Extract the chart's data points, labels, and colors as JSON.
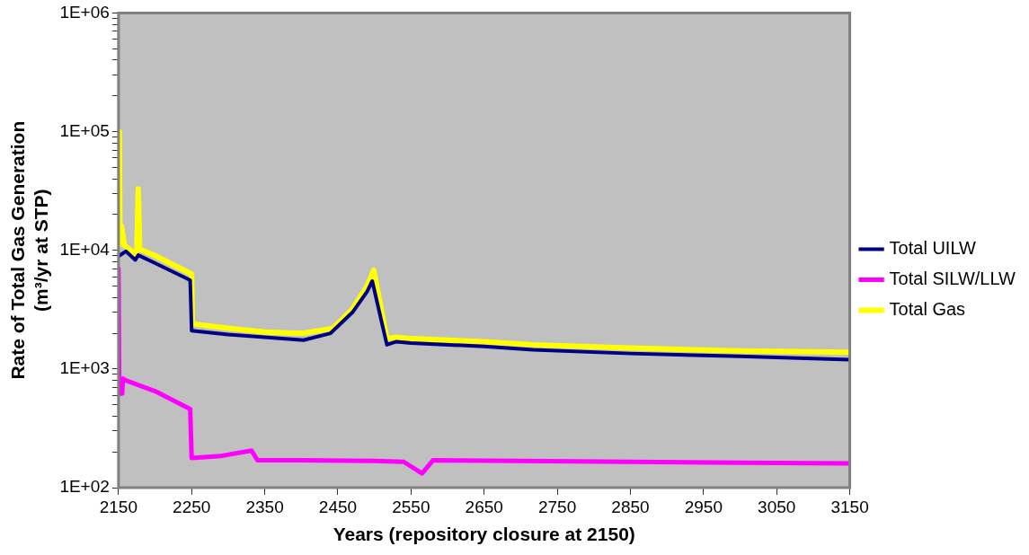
{
  "chart_data": {
    "type": "line",
    "xlabel": "Years (repository closure at 2150)",
    "ylabel": "Rate of Total Gas Generation (m³/yr at STP)",
    "log": "y",
    "grid": false,
    "legend": "right",
    "marker": "none",
    "line_style": "solid",
    "xlim": [
      2150,
      3150
    ],
    "xticks": [
      2150,
      2250,
      2350,
      2450,
      2550,
      2650,
      2750,
      2850,
      2950,
      3050,
      3150
    ],
    "ylim": [
      100,
      1000000
    ],
    "yticks": [
      {
        "value": 100,
        "label": "1E+02"
      },
      {
        "value": 200,
        "label": null
      },
      {
        "value": 300,
        "label": null
      },
      {
        "value": 400,
        "label": null
      },
      {
        "value": 500,
        "label": null
      },
      {
        "value": 600,
        "label": null
      },
      {
        "value": 700,
        "label": null
      },
      {
        "value": 800,
        "label": null
      },
      {
        "value": 900,
        "label": null
      },
      {
        "value": 1000,
        "label": "1E+03"
      },
      {
        "value": 2000,
        "label": null
      },
      {
        "value": 3000,
        "label": null
      },
      {
        "value": 4000,
        "label": null
      },
      {
        "value": 5000,
        "label": null
      },
      {
        "value": 6000,
        "label": null
      },
      {
        "value": 7000,
        "label": null
      },
      {
        "value": 8000,
        "label": null
      },
      {
        "value": 9000,
        "label": null
      },
      {
        "value": 10000,
        "label": "1E+04"
      },
      {
        "value": 20000,
        "label": null
      },
      {
        "value": 30000,
        "label": null
      },
      {
        "value": 40000,
        "label": null
      },
      {
        "value": 50000,
        "label": null
      },
      {
        "value": 60000,
        "label": null
      },
      {
        "value": 70000,
        "label": null
      },
      {
        "value": 80000,
        "label": null
      },
      {
        "value": 90000,
        "label": null
      },
      {
        "value": 100000,
        "label": "1E+05"
      },
      {
        "value": 200000,
        "label": null
      },
      {
        "value": 300000,
        "label": null
      },
      {
        "value": 400000,
        "label": null
      },
      {
        "value": 500000,
        "label": null
      },
      {
        "value": 600000,
        "label": null
      },
      {
        "value": 700000,
        "label": null
      },
      {
        "value": 800000,
        "label": null
      },
      {
        "value": 900000,
        "label": null
      },
      {
        "value": 1000000,
        "label": "1E+06"
      }
    ],
    "series": [
      {
        "name": "Total UILW",
        "color": "#000080",
        "x": [
          2151,
          2160,
          2173,
          2177,
          2200,
          2248,
          2250,
          2300,
          2350,
          2403,
          2440,
          2470,
          2490,
          2497,
          2517,
          2530,
          2550,
          2650,
          2717,
          2850,
          3000,
          3150
        ],
        "values": [
          9000,
          9800,
          8300,
          9100,
          7800,
          5600,
          2100,
          1950,
          1850,
          1750,
          2000,
          3000,
          4500,
          5500,
          1600,
          1700,
          1650,
          1550,
          1450,
          1350,
          1280,
          1200
        ]
      },
      {
        "name": "Total SILW/LLW",
        "color": "#ff00ff",
        "x": [
          2150,
          2151,
          2155,
          2156,
          2160,
          2200,
          2248,
          2250,
          2290,
          2332,
          2340,
          2400,
          2500,
          2540,
          2565,
          2580,
          2700,
          2850,
          3000,
          3150
        ],
        "values": [
          7000,
          620,
          620,
          830,
          800,
          650,
          460,
          178,
          185,
          205,
          170,
          170,
          168,
          165,
          132,
          170,
          168,
          165,
          162,
          160
        ]
      },
      {
        "name": "Total Gas",
        "color": "#ffff00",
        "x": [
          2150,
          2151,
          2152,
          2154,
          2158,
          2173,
          2175,
          2177,
          2179,
          2200,
          2250,
          2251,
          2300,
          2350,
          2390,
          2403,
          2443,
          2470,
          2490,
          2499,
          2517,
          2530,
          2550,
          2650,
          2717,
          2850,
          3000,
          3150
        ],
        "values": [
          11000,
          100000,
          12000,
          16000,
          11000,
          9300,
          10000,
          33000,
          10200,
          9000,
          6300,
          2400,
          2200,
          2050,
          2000,
          2000,
          2200,
          3200,
          5000,
          6800,
          1800,
          1850,
          1800,
          1700,
          1600,
          1500,
          1420,
          1380
        ]
      }
    ]
  }
}
